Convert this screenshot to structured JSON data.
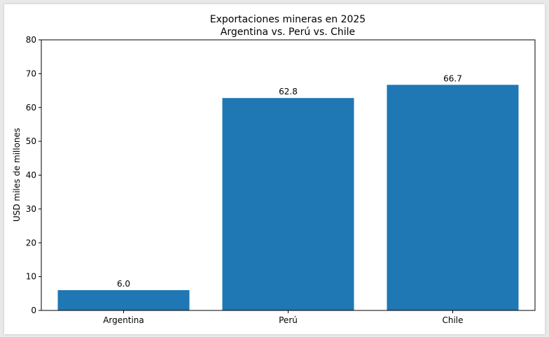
{
  "chart_data": {
    "type": "bar",
    "title": "Exportaciones mineras en 2025",
    "subtitle": "Argentina vs. Perú vs. Chile",
    "xlabel": "",
    "ylabel": "USD miles de millones",
    "categories": [
      "Argentina",
      "Perú",
      "Chile"
    ],
    "values": [
      6.0,
      62.8,
      66.7
    ],
    "data_labels": [
      "6.0",
      "62.8",
      "66.7"
    ],
    "ylim": [
      0,
      80
    ],
    "yticks": [
      0,
      10,
      20,
      30,
      40,
      50,
      60,
      70,
      80
    ],
    "grid": false,
    "legend": "none",
    "bar_color": "#1f77b4"
  }
}
